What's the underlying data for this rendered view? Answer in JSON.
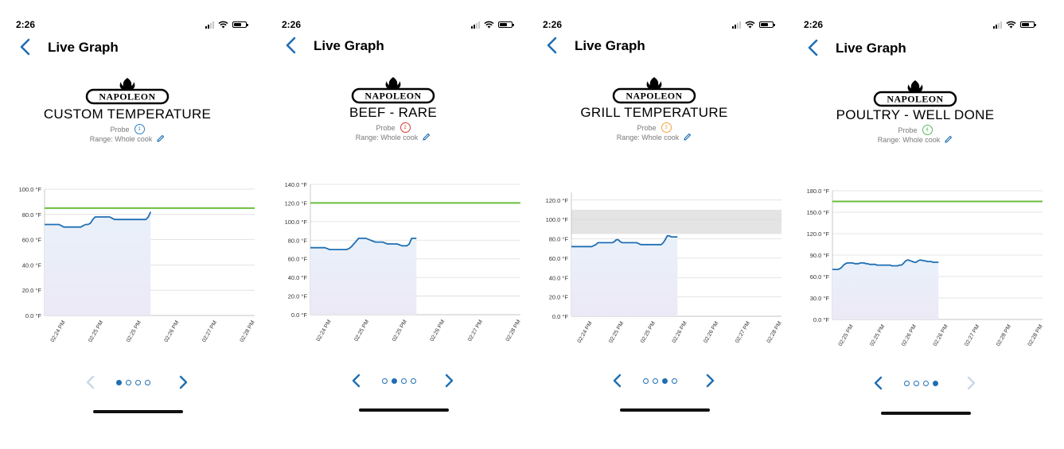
{
  "colors": {
    "accent": "#1f6fb4",
    "target_line": "#6abf3a",
    "area_fill": "#e7eef8",
    "band": "#e4e4e4"
  },
  "screens": [
    {
      "status_time": "2:26",
      "nav_title": "Live Graph",
      "brand": "NAPOLEON",
      "probe_title": "CUSTOM TEMPERATURE",
      "probe_label": "Probe",
      "probe_number": "1",
      "probe_color": "#2a7fc7",
      "range_text": "Range: Whole cook",
      "active_page": 0,
      "page_count": 4,
      "chart_data": {
        "type": "line",
        "y_ticks": [
          "0.0 °F",
          "20.0 °F",
          "40.0 °F",
          "60.0 °F",
          "80.0 °F",
          "100.0 °F"
        ],
        "ylim": [
          0,
          100
        ],
        "x_ticks": [
          "02:24 PM",
          "02:25 PM",
          "02:25 PM",
          "02:26 PM",
          "02:27 PM",
          "02:28 PM"
        ],
        "target": 85,
        "band": null,
        "values": [
          72,
          72,
          72,
          72,
          72,
          72,
          72,
          71,
          70,
          70,
          70,
          70,
          70,
          70,
          70,
          70,
          71,
          72,
          72,
          73,
          76,
          78,
          78,
          78,
          78,
          78,
          78,
          78,
          77,
          76,
          76,
          76,
          76,
          76,
          76,
          76,
          76,
          76,
          76,
          76,
          76,
          76,
          76,
          78,
          82
        ]
      }
    },
    {
      "status_time": "2:26",
      "nav_title": "Live Graph",
      "brand": "NAPOLEON",
      "probe_title": "BEEF - RARE",
      "probe_label": "Probe",
      "probe_number": "2",
      "probe_color": "#d0403a",
      "range_text": "Range: Whole cook",
      "active_page": 1,
      "page_count": 4,
      "chart_data": {
        "type": "line",
        "y_ticks": [
          "0.0 °F",
          "20.0 °F",
          "40.0 °F",
          "60.0 °F",
          "80.0 °F",
          "100.0 °F",
          "120.0 °F",
          "140.0 °F"
        ],
        "ylim": [
          0,
          140
        ],
        "x_ticks": [
          "02:24 PM",
          "02:25 PM",
          "02:25 PM",
          "02:26 PM",
          "02:27 PM",
          "02:28 PM"
        ],
        "target": 120,
        "band": null,
        "values": [
          72,
          72,
          72,
          72,
          72,
          72,
          72,
          71,
          70,
          70,
          70,
          70,
          70,
          70,
          70,
          70,
          71,
          73,
          76,
          79,
          82,
          82,
          82,
          82,
          81,
          80,
          79,
          78,
          78,
          78,
          78,
          77,
          76,
          76,
          76,
          76,
          76,
          75,
          74,
          74,
          74,
          76,
          82,
          82,
          82
        ]
      }
    },
    {
      "status_time": "2:26",
      "nav_title": "Live Graph",
      "brand": "NAPOLEON",
      "probe_title": "GRILL TEMPERATURE",
      "probe_label": "Probe",
      "probe_number": "3",
      "probe_color": "#f2a23a",
      "range_text": "Range: Whole cook",
      "active_page": 2,
      "page_count": 4,
      "chart_data": {
        "type": "line",
        "y_ticks": [
          "0.0 °F",
          "20.0 °F",
          "40.0 °F",
          "60.0 °F",
          "80.0 °F",
          "100.0 °F",
          "120.0 °F"
        ],
        "ylim": [
          0,
          128
        ],
        "x_ticks": [
          "02:24 PM",
          "02:25 PM",
          "02:25 PM",
          "02:26 PM",
          "02:26 PM",
          "02:27 PM",
          "02:28 PM"
        ],
        "target": null,
        "band": [
          85,
          110
        ],
        "values": [
          72,
          72,
          72,
          72,
          72,
          72,
          72,
          72,
          72,
          72,
          72,
          73,
          74,
          76,
          76,
          76,
          76,
          76,
          76,
          76,
          76,
          77,
          79,
          79,
          77,
          76,
          76,
          76,
          76,
          76,
          76,
          76,
          76,
          75,
          74,
          74,
          74,
          74,
          74,
          74,
          74,
          74,
          74,
          74,
          74,
          76,
          79,
          83,
          83,
          82,
          82,
          82,
          82
        ]
      }
    },
    {
      "status_time": "2:26",
      "nav_title": "Live Graph",
      "brand": "NAPOLEON",
      "probe_title": "POULTRY - WELL DONE",
      "probe_label": "Probe",
      "probe_number": "4",
      "probe_color": "#5cb85c",
      "range_text": "Range: Whole cook",
      "active_page": 3,
      "page_count": 4,
      "chart_data": {
        "type": "line",
        "y_ticks": [
          "0.0 °F",
          "30.0 °F",
          "60.0 °F",
          "90.0 °F",
          "120.0 °F",
          "150.0 °F",
          "180.0 °F"
        ],
        "ylim": [
          0,
          180
        ],
        "x_ticks": [
          "02:25 PM",
          "02:25 PM",
          "02:26 PM",
          "02:26 PM",
          "02:27 PM",
          "02:28 PM",
          "02:28 PM"
        ],
        "target": 165,
        "band": null,
        "values": [
          70,
          70,
          70,
          70,
          71,
          73,
          76,
          78,
          79,
          79,
          79,
          79,
          78,
          78,
          78,
          79,
          79,
          79,
          78,
          78,
          77,
          77,
          77,
          77,
          76,
          76,
          76,
          76,
          76,
          76,
          76,
          76,
          75,
          75,
          75,
          75,
          76,
          76,
          78,
          81,
          83,
          83,
          82,
          81,
          80,
          80,
          82,
          83,
          83,
          82,
          82,
          81,
          81,
          81,
          80,
          80,
          80,
          80
        ]
      }
    }
  ]
}
